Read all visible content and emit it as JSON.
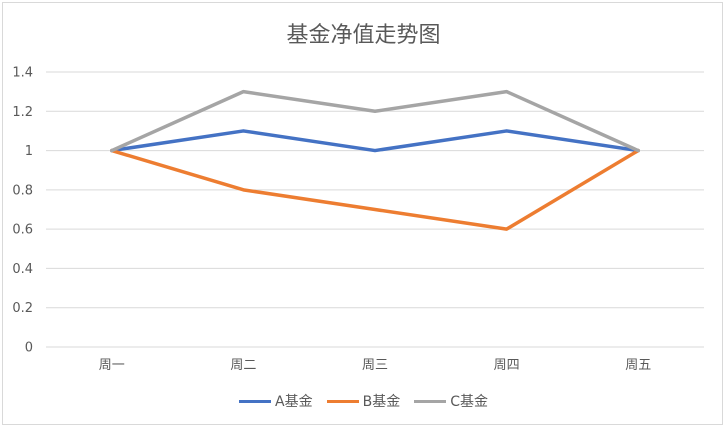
{
  "chart_data": {
    "type": "line",
    "title": "基金净值走势图",
    "categories": [
      "周一",
      "周二",
      "周三",
      "周四",
      "周五"
    ],
    "series": [
      {
        "name": "A基金",
        "color": "#4472c4",
        "values": [
          1,
          1.1,
          1,
          1.1,
          1
        ]
      },
      {
        "name": "B基金",
        "color": "#ed7d31",
        "values": [
          1,
          0.8,
          0.7,
          0.6,
          1
        ]
      },
      {
        "name": "C基金",
        "color": "#a5a5a5",
        "values": [
          1,
          1.3,
          1.2,
          1.3,
          1
        ]
      }
    ],
    "y_ticks": [
      "0",
      "0.2",
      "0.4",
      "0.6",
      "0.8",
      "1",
      "1.2",
      "1.4"
    ],
    "ylim": [
      0,
      1.4
    ],
    "grid": true,
    "legend_position": "bottom"
  }
}
